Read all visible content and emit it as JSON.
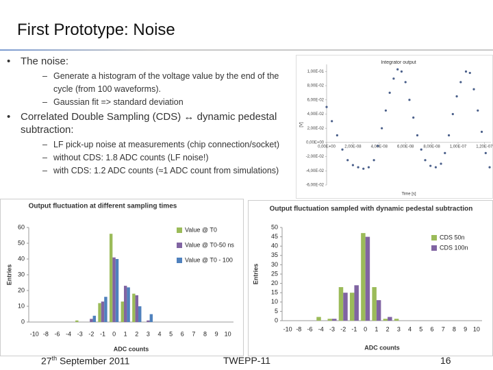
{
  "title": "First Prototype: Noise",
  "bullets": [
    {
      "text": "The noise:",
      "sub": [
        "Generate a histogram of the voltage value by the end of the cycle (from 100 waveforms).",
        "Gaussian fit => standard deviation"
      ]
    },
    {
      "text": "Correlated Double Sampling (CDS) ↔ dynamic pedestal subtraction:",
      "sub": [
        "LF pick-up noise at measurements (chip connection/socket)",
        "without CDS: 1.8 ADC counts (LF noise!)",
        "with CDS: 1.2 ADC counts (≈1 ADC count from simulations)"
      ]
    }
  ],
  "footer": {
    "date_day": "27",
    "date_suffix": "th",
    "date_rest": "September 2011",
    "event": "TWEPP-11",
    "page": "16"
  },
  "chart_data": [
    {
      "type": "scatter",
      "title": "Integrator output",
      "xlabel": "Time [s]",
      "ylabel": "[V]",
      "color": "#4a5f8a",
      "x": [
        0,
        4e-09,
        8e-09,
        1.2e-08,
        1.6e-08,
        2e-08,
        2.4e-08,
        2.8e-08,
        3.2e-08,
        3.6e-08,
        3.9e-08,
        4.2e-08,
        4.5e-08,
        4.8e-08,
        5.1e-08,
        5.4e-08,
        5.7e-08,
        6e-08,
        6.3e-08,
        6.6e-08,
        6.9e-08,
        7.2e-08,
        7.5e-08,
        7.9e-08,
        8.3e-08,
        8.7e-08,
        9e-08,
        9.3e-08,
        9.6e-08,
        9.9e-08,
        1.02e-07,
        1.06e-07,
        1.09e-07,
        1.12e-07,
        1.15e-07,
        1.18e-07,
        1.21e-07,
        1.24e-07
      ],
      "values": [
        0.05,
        0.03,
        0.01,
        -0.01,
        -0.025,
        -0.032,
        -0.035,
        -0.037,
        -0.035,
        -0.025,
        -0.005,
        0.02,
        0.045,
        0.07,
        0.09,
        0.103,
        0.1,
        0.085,
        0.06,
        0.035,
        0.01,
        -0.01,
        -0.025,
        -0.033,
        -0.035,
        -0.03,
        -0.015,
        0.01,
        0.04,
        0.065,
        0.085,
        0.1,
        0.098,
        0.075,
        0.045,
        0.015,
        -0.015,
        -0.035
      ],
      "xlim": [
        0,
        1.25e-07
      ],
      "xticks": [
        {
          "value": 0,
          "label": "0,00E+00"
        },
        {
          "value": 2e-08,
          "label": "2,00E-08"
        },
        {
          "value": 4e-08,
          "label": "4,00E-08"
        },
        {
          "value": 6e-08,
          "label": "6,00E-08"
        },
        {
          "value": 8e-08,
          "label": "8,00E-08"
        },
        {
          "value": 1e-07,
          "label": "1,00E-07"
        },
        {
          "value": 1.2e-07,
          "label": "1,20E-07"
        }
      ],
      "ylim": [
        -0.06,
        0.11
      ],
      "yticks": [
        {
          "value": -0.06,
          "label": "-6,00E-02"
        },
        {
          "value": -0.04,
          "label": "-4,00E-02"
        },
        {
          "value": -0.02,
          "label": "-2,00E-02"
        },
        {
          "value": 0,
          "label": "0,00E+00"
        },
        {
          "value": 0.02,
          "label": "2,00E-02"
        },
        {
          "value": 0.04,
          "label": "4,00E-02"
        },
        {
          "value": 0.06,
          "label": "6,00E-02"
        },
        {
          "value": 0.08,
          "label": "8,00E-02"
        },
        {
          "value": 0.1,
          "label": "1,00E-01"
        }
      ],
      "grid": false
    },
    {
      "type": "bar",
      "title": "Output fluctuation at different sampling times",
      "xlabel": "ADC counts",
      "ylabel": "Entries",
      "legend": "upper right",
      "categories": [
        "-10",
        "-8",
        "-6",
        "-4",
        "-3",
        "-2",
        "-1",
        "0",
        "1",
        "2",
        "3",
        "4",
        "5",
        "6",
        "7",
        "8",
        "9",
        "10"
      ],
      "series": [
        {
          "name": "Value @ T0",
          "color": "#9bbb59",
          "values": [
            0,
            0,
            0,
            0,
            1,
            0,
            12,
            56,
            13,
            18,
            0,
            0,
            0,
            0,
            0,
            0,
            0,
            0
          ]
        },
        {
          "name": "Value @ T0-50 ns",
          "color": "#8064a2",
          "values": [
            0,
            0,
            0,
            0,
            0,
            2,
            13,
            41,
            23,
            17,
            1,
            0,
            0,
            0,
            0,
            0,
            0,
            0
          ]
        },
        {
          "name": "Value @ T0 - 100",
          "color": "#4f81bd",
          "values": [
            0,
            0,
            0,
            0,
            0,
            4,
            16,
            40,
            22,
            10,
            5,
            0,
            0,
            0,
            0,
            0,
            0,
            0
          ]
        }
      ],
      "ylim": [
        0,
        60
      ],
      "yticks": [
        0,
        10,
        20,
        30,
        40,
        50,
        60
      ],
      "grid": false
    },
    {
      "type": "bar",
      "title": "Output fluctuation sampled with dynamic pedestal subtraction",
      "xlabel": "ADC counts",
      "ylabel": "Entries",
      "legend": "upper right",
      "categories": [
        "-10",
        "-8",
        "-6",
        "-4",
        "-3",
        "-2",
        "-1",
        "0",
        "1",
        "2",
        "3",
        "4",
        "5",
        "6",
        "7",
        "8",
        "9",
        "10"
      ],
      "series": [
        {
          "name": "CDS 50n",
          "color": "#9bbb59",
          "values": [
            0,
            0,
            0,
            2,
            1,
            18,
            15,
            47,
            18,
            1,
            1,
            0,
            0,
            0,
            0,
            0,
            0,
            0
          ]
        },
        {
          "name": "CDS 100n",
          "color": "#8064a2",
          "values": [
            0,
            0,
            0,
            0,
            1,
            15,
            19,
            45,
            11,
            2,
            0,
            0,
            0,
            0,
            0,
            0,
            0,
            0
          ]
        }
      ],
      "ylim": [
        0,
        50
      ],
      "yticks": [
        0,
        5,
        10,
        15,
        20,
        25,
        30,
        35,
        40,
        45,
        50
      ],
      "grid": false
    }
  ]
}
